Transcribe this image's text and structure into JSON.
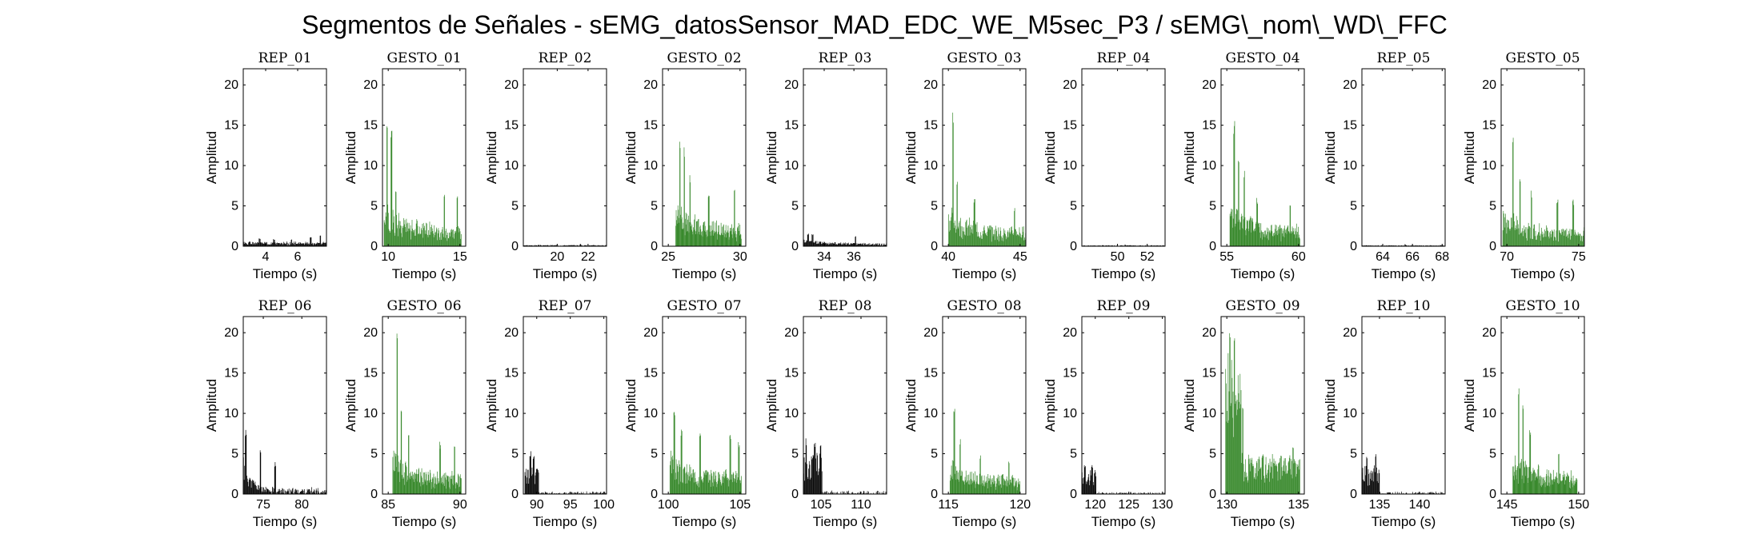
{
  "figure": {
    "title": "Segmentos de Señales - sEMG_datosSensor_MAD_EDC_WE_M5sec_P3 / sEMG\\_nom\\_WD\\_FFC"
  },
  "colors": {
    "rep": "#000000",
    "gesto": "#3a8a2e"
  },
  "chart_data": [
    {
      "type": "bar",
      "title": "REP_01",
      "xlabel": "Tiempo (s)",
      "ylabel": "Amplitud",
      "xlim": [
        2.6,
        7.8
      ],
      "ylim": [
        0,
        22
      ],
      "xticks": [
        4,
        6
      ],
      "yticks": [
        0,
        5,
        10,
        15,
        20
      ],
      "color": "rep",
      "start": 2.6,
      "end": 7.8,
      "peaks": [
        [
          3.0,
          0.6
        ],
        [
          3.6,
          1.0
        ],
        [
          4.5,
          0.9
        ],
        [
          5.6,
          0.9
        ],
        [
          6.8,
          1.2
        ],
        [
          7.4,
          1.5
        ]
      ],
      "base": 0.5,
      "decay": 0,
      "tail": 0.5,
      "noise": 0.5,
      "seed": 1
    },
    {
      "type": "bar",
      "title": "GESTO_01",
      "xlabel": "Tiempo (s)",
      "ylabel": "Amplitud",
      "xlim": [
        9.6,
        15.4
      ],
      "ylim": [
        0,
        22
      ],
      "xticks": [
        10,
        15
      ],
      "yticks": [
        0,
        5,
        10,
        15,
        20
      ],
      "color": "gesto",
      "start": 9.7,
      "end": 15.1,
      "peaks": [
        [
          9.9,
          16
        ],
        [
          10.2,
          15
        ],
        [
          10.5,
          7
        ],
        [
          13.9,
          6.5
        ],
        [
          14.8,
          7
        ]
      ],
      "base": 6,
      "decay": 1.2,
      "tail": 2.2,
      "noise": 2.5,
      "seed": 2
    },
    {
      "type": "bar",
      "title": "REP_02",
      "xlabel": "Tiempo (s)",
      "ylabel": "Amplitud",
      "xlim": [
        17.8,
        23.2
      ],
      "ylim": [
        0,
        22
      ],
      "xticks": [
        20,
        22
      ],
      "yticks": [
        0,
        5,
        10,
        15,
        20
      ],
      "color": "rep",
      "start": 17.8,
      "end": 23.2,
      "peaks": [
        [
          21.5,
          0.3
        ]
      ],
      "base": 0.15,
      "decay": 0,
      "tail": 0.15,
      "noise": 0.12,
      "seed": 3
    },
    {
      "type": "bar",
      "title": "GESTO_02",
      "xlabel": "Tiempo (s)",
      "ylabel": "Amplitud",
      "xlim": [
        24.6,
        30.4
      ],
      "ylim": [
        0,
        22
      ],
      "xticks": [
        25,
        30
      ],
      "yticks": [
        0,
        5,
        10,
        15,
        20
      ],
      "color": "gesto",
      "start": 25.5,
      "end": 30.1,
      "peaks": [
        [
          25.8,
          14
        ],
        [
          26.1,
          12.5
        ],
        [
          26.5,
          9
        ],
        [
          27.8,
          7
        ],
        [
          29.6,
          7
        ]
      ],
      "base": 6,
      "decay": 1.2,
      "tail": 2.5,
      "noise": 2.4,
      "seed": 4
    },
    {
      "type": "bar",
      "title": "REP_03",
      "xlabel": "Tiempo (s)",
      "ylabel": "Amplitud",
      "xlim": [
        32.6,
        38.2
      ],
      "ylim": [
        0,
        22
      ],
      "xticks": [
        34,
        36
      ],
      "yticks": [
        0,
        5,
        10,
        15,
        20
      ],
      "color": "rep",
      "start": 32.6,
      "end": 38.2,
      "peaks": [
        [
          32.9,
          1.6
        ],
        [
          33.2,
          1.5
        ],
        [
          36.1,
          1.3
        ]
      ],
      "base": 0.9,
      "decay": 0.8,
      "tail": 0.25,
      "noise": 0.35,
      "seed": 5
    },
    {
      "type": "bar",
      "title": "GESTO_03",
      "xlabel": "Tiempo (s)",
      "ylabel": "Amplitud",
      "xlim": [
        39.6,
        45.4
      ],
      "ylim": [
        0,
        22
      ],
      "xticks": [
        40,
        45
      ],
      "yticks": [
        0,
        5,
        10,
        15,
        20
      ],
      "color": "gesto",
      "start": 40.0,
      "end": 45.4,
      "peaks": [
        [
          40.3,
          16.8
        ],
        [
          40.6,
          9
        ],
        [
          41.8,
          6
        ],
        [
          44.6,
          5
        ]
      ],
      "base": 5,
      "decay": 1.2,
      "tail": 2.2,
      "noise": 2.2,
      "seed": 6
    },
    {
      "type": "bar",
      "title": "REP_04",
      "xlabel": "Tiempo (s)",
      "ylabel": "Amplitud",
      "xlim": [
        47.6,
        53.2
      ],
      "ylim": [
        0,
        22
      ],
      "xticks": [
        50,
        52
      ],
      "yticks": [
        0,
        5,
        10,
        15,
        20
      ],
      "color": "rep",
      "start": 47.6,
      "end": 53.2,
      "peaks": [
        [
          50.5,
          0.2
        ]
      ],
      "base": 0.12,
      "decay": 0,
      "tail": 0.12,
      "noise": 0.08,
      "seed": 7
    },
    {
      "type": "bar",
      "title": "GESTO_04",
      "xlabel": "Tiempo (s)",
      "ylabel": "Amplitud",
      "xlim": [
        54.6,
        60.4
      ],
      "ylim": [
        0,
        22
      ],
      "xticks": [
        55,
        60
      ],
      "yticks": [
        0,
        5,
        10,
        15,
        20
      ],
      "color": "gesto",
      "start": 55.2,
      "end": 60.1,
      "peaks": [
        [
          55.5,
          16.2
        ],
        [
          55.8,
          12
        ],
        [
          56.2,
          10
        ],
        [
          57.1,
          6
        ],
        [
          59.4,
          5.5
        ]
      ],
      "base": 6,
      "decay": 1.3,
      "tail": 2.3,
      "noise": 2.3,
      "seed": 8
    },
    {
      "type": "bar",
      "title": "REP_05",
      "xlabel": "Tiempo (s)",
      "ylabel": "Amplitud",
      "xlim": [
        62.6,
        68.2
      ],
      "ylim": [
        0,
        22
      ],
      "xticks": [
        64,
        66,
        68
      ],
      "yticks": [
        0,
        5,
        10,
        15,
        20
      ],
      "color": "rep",
      "start": 62.6,
      "end": 68.2,
      "peaks": [
        [
          65.5,
          0.25
        ]
      ],
      "base": 0.12,
      "decay": 0,
      "tail": 0.12,
      "noise": 0.08,
      "seed": 9
    },
    {
      "type": "bar",
      "title": "GESTO_05",
      "xlabel": "Tiempo (s)",
      "ylabel": "Amplitud",
      "xlim": [
        69.6,
        75.4
      ],
      "ylim": [
        0,
        22
      ],
      "xticks": [
        70,
        75
      ],
      "yticks": [
        0,
        5,
        10,
        15,
        20
      ],
      "color": "gesto",
      "start": 69.7,
      "end": 75.4,
      "peaks": [
        [
          70.4,
          14.6
        ],
        [
          70.9,
          9
        ],
        [
          71.7,
          7
        ],
        [
          73.5,
          6
        ],
        [
          74.6,
          6
        ]
      ],
      "base": 5,
      "decay": 1.2,
      "tail": 2,
      "noise": 2.3,
      "seed": 10
    },
    {
      "type": "bar",
      "title": "REP_06",
      "xlabel": "Tiempo (s)",
      "ylabel": "Amplitud",
      "xlim": [
        72.4,
        83.2
      ],
      "ylim": [
        0,
        22
      ],
      "xticks": [
        75,
        80
      ],
      "yticks": [
        0,
        5,
        10,
        15,
        20
      ],
      "color": "rep",
      "start": 72.4,
      "end": 83.2,
      "peaks": [
        [
          72.7,
          8
        ],
        [
          74.6,
          6
        ],
        [
          76.5,
          4
        ]
      ],
      "base": 5,
      "decay": 3.5,
      "tail": 0.5,
      "noise": 1.8,
      "seed": 11
    },
    {
      "type": "bar",
      "title": "GESTO_06",
      "xlabel": "Tiempo (s)",
      "ylabel": "Amplitud",
      "xlim": [
        84.6,
        90.4
      ],
      "ylim": [
        0,
        22
      ],
      "xticks": [
        85,
        90
      ],
      "yticks": [
        0,
        5,
        10,
        15,
        20
      ],
      "color": "gesto",
      "start": 85.3,
      "end": 90.1,
      "peaks": [
        [
          85.6,
          20
        ],
        [
          85.9,
          10.5
        ],
        [
          86.4,
          8
        ],
        [
          88.6,
          6.5
        ],
        [
          89.6,
          6
        ]
      ],
      "base": 6,
      "decay": 1.2,
      "tail": 2.4,
      "noise": 2.4,
      "seed": 12
    },
    {
      "type": "bar",
      "title": "REP_07",
      "xlabel": "Tiempo (s)",
      "ylabel": "Amplitud",
      "xlim": [
        88.0,
        100.4
      ],
      "ylim": [
        0,
        22
      ],
      "xticks": [
        90,
        95,
        100
      ],
      "yticks": [
        0,
        5,
        10,
        15,
        20
      ],
      "color": "rep",
      "start": 88.2,
      "end": 100.4,
      "peaks": [
        [
          89.0,
          5.4
        ],
        [
          89.5,
          4.8
        ],
        [
          90.0,
          3.6
        ]
      ],
      "base": 3.5,
      "decay": 0,
      "tail": 0.1,
      "noise": 1.2,
      "split": 90.3,
      "seed": 13
    },
    {
      "type": "bar",
      "title": "GESTO_07",
      "xlabel": "Tiempo (s)",
      "ylabel": "Amplitud",
      "xlim": [
        99.6,
        105.4
      ],
      "ylim": [
        0,
        22
      ],
      "xticks": [
        100,
        105
      ],
      "yticks": [
        0,
        5,
        10,
        15,
        20
      ],
      "color": "gesto",
      "start": 100.1,
      "end": 105.1,
      "peaks": [
        [
          100.4,
          10.8
        ],
        [
          100.9,
          8.5
        ],
        [
          102.2,
          8
        ],
        [
          104.3,
          7.5
        ],
        [
          104.9,
          6.5
        ]
      ],
      "base": 5.5,
      "decay": 2.5,
      "tail": 3,
      "noise": 2.5,
      "seed": 14
    },
    {
      "type": "bar",
      "title": "REP_08",
      "xlabel": "Tiempo (s)",
      "ylabel": "Amplitud",
      "xlim": [
        102.8,
        113.2
      ],
      "ylim": [
        0,
        22
      ],
      "xticks": [
        105,
        110
      ],
      "yticks": [
        0,
        5,
        10,
        15,
        20
      ],
      "color": "rep",
      "start": 102.8,
      "end": 113.2,
      "peaks": [
        [
          103.1,
          7
        ],
        [
          104.2,
          6.8
        ],
        [
          104.9,
          6.5
        ]
      ],
      "base": 5,
      "decay": 0,
      "tail": 0.1,
      "noise": 1.8,
      "split": 105.1,
      "seed": 15
    },
    {
      "type": "bar",
      "title": "GESTO_08",
      "xlabel": "Tiempo (s)",
      "ylabel": "Amplitud",
      "xlim": [
        114.6,
        120.4
      ],
      "ylim": [
        0,
        22
      ],
      "xticks": [
        115,
        120
      ],
      "yticks": [
        0,
        5,
        10,
        15,
        20
      ],
      "color": "gesto",
      "start": 115.1,
      "end": 120.0,
      "peaks": [
        [
          115.4,
          10.7
        ],
        [
          115.8,
          7
        ],
        [
          117.2,
          5
        ],
        [
          119.2,
          4.5
        ]
      ],
      "base": 4.5,
      "decay": 1.5,
      "tail": 2.2,
      "noise": 1.8,
      "seed": 16
    },
    {
      "type": "bar",
      "title": "REP_09",
      "xlabel": "Tiempo (s)",
      "ylabel": "Amplitud",
      "xlim": [
        118.0,
        130.4
      ],
      "ylim": [
        0,
        22
      ],
      "xticks": [
        120,
        125,
        130
      ],
      "yticks": [
        0,
        5,
        10,
        15,
        20
      ],
      "color": "rep",
      "start": 118.0,
      "end": 130.4,
      "peaks": [
        [
          118.4,
          3.6
        ],
        [
          119.5,
          3.7
        ]
      ],
      "base": 3,
      "decay": 0,
      "tail": 0.1,
      "noise": 0.9,
      "split": 120.1,
      "seed": 17
    },
    {
      "type": "bar",
      "title": "GESTO_09",
      "xlabel": "Tiempo (s)",
      "ylabel": "Amplitud",
      "xlim": [
        129.6,
        135.4
      ],
      "ylim": [
        0,
        22
      ],
      "xticks": [
        130,
        135
      ],
      "yticks": [
        0,
        5,
        10,
        15,
        20
      ],
      "color": "gesto",
      "start": 129.9,
      "end": 135.1,
      "peaks": [
        [
          130.2,
          20.3
        ],
        [
          130.5,
          20.8
        ],
        [
          130.9,
          12
        ],
        [
          131.1,
          11
        ],
        [
          132.5,
          5
        ],
        [
          134.6,
          6
        ]
      ],
      "base": 18,
      "decay": 0.3,
      "tail": 2.8,
      "noise": 2.5,
      "cut": 131.0,
      "seed": 18
    },
    {
      "type": "bar",
      "title": "REP_10",
      "xlabel": "Tiempo (s)",
      "ylabel": "Amplitud",
      "xlim": [
        132.8,
        143.2
      ],
      "ylim": [
        0,
        22
      ],
      "xticks": [
        135,
        140
      ],
      "yticks": [
        0,
        5,
        10,
        15,
        20
      ],
      "color": "rep",
      "start": 132.8,
      "end": 143.2,
      "peaks": [
        [
          133.4,
          5
        ],
        [
          134.5,
          5.4
        ]
      ],
      "base": 3.5,
      "decay": 0,
      "tail": 0.08,
      "noise": 1.2,
      "split": 135.0,
      "seed": 19
    },
    {
      "type": "bar",
      "title": "GESTO_10",
      "xlabel": "Tiempo (s)",
      "ylabel": "Amplitud",
      "xlim": [
        144.6,
        150.4
      ],
      "ylim": [
        0,
        22
      ],
      "xticks": [
        145,
        150
      ],
      "yticks": [
        0,
        5,
        10,
        15,
        20
      ],
      "color": "gesto",
      "start": 145.4,
      "end": 149.9,
      "peaks": [
        [
          145.8,
          14
        ],
        [
          146.1,
          12
        ],
        [
          146.6,
          8
        ],
        [
          148.6,
          5
        ]
      ],
      "base": 5.5,
      "decay": 1.2,
      "tail": 2.6,
      "noise": 2.2,
      "seed": 20
    }
  ]
}
